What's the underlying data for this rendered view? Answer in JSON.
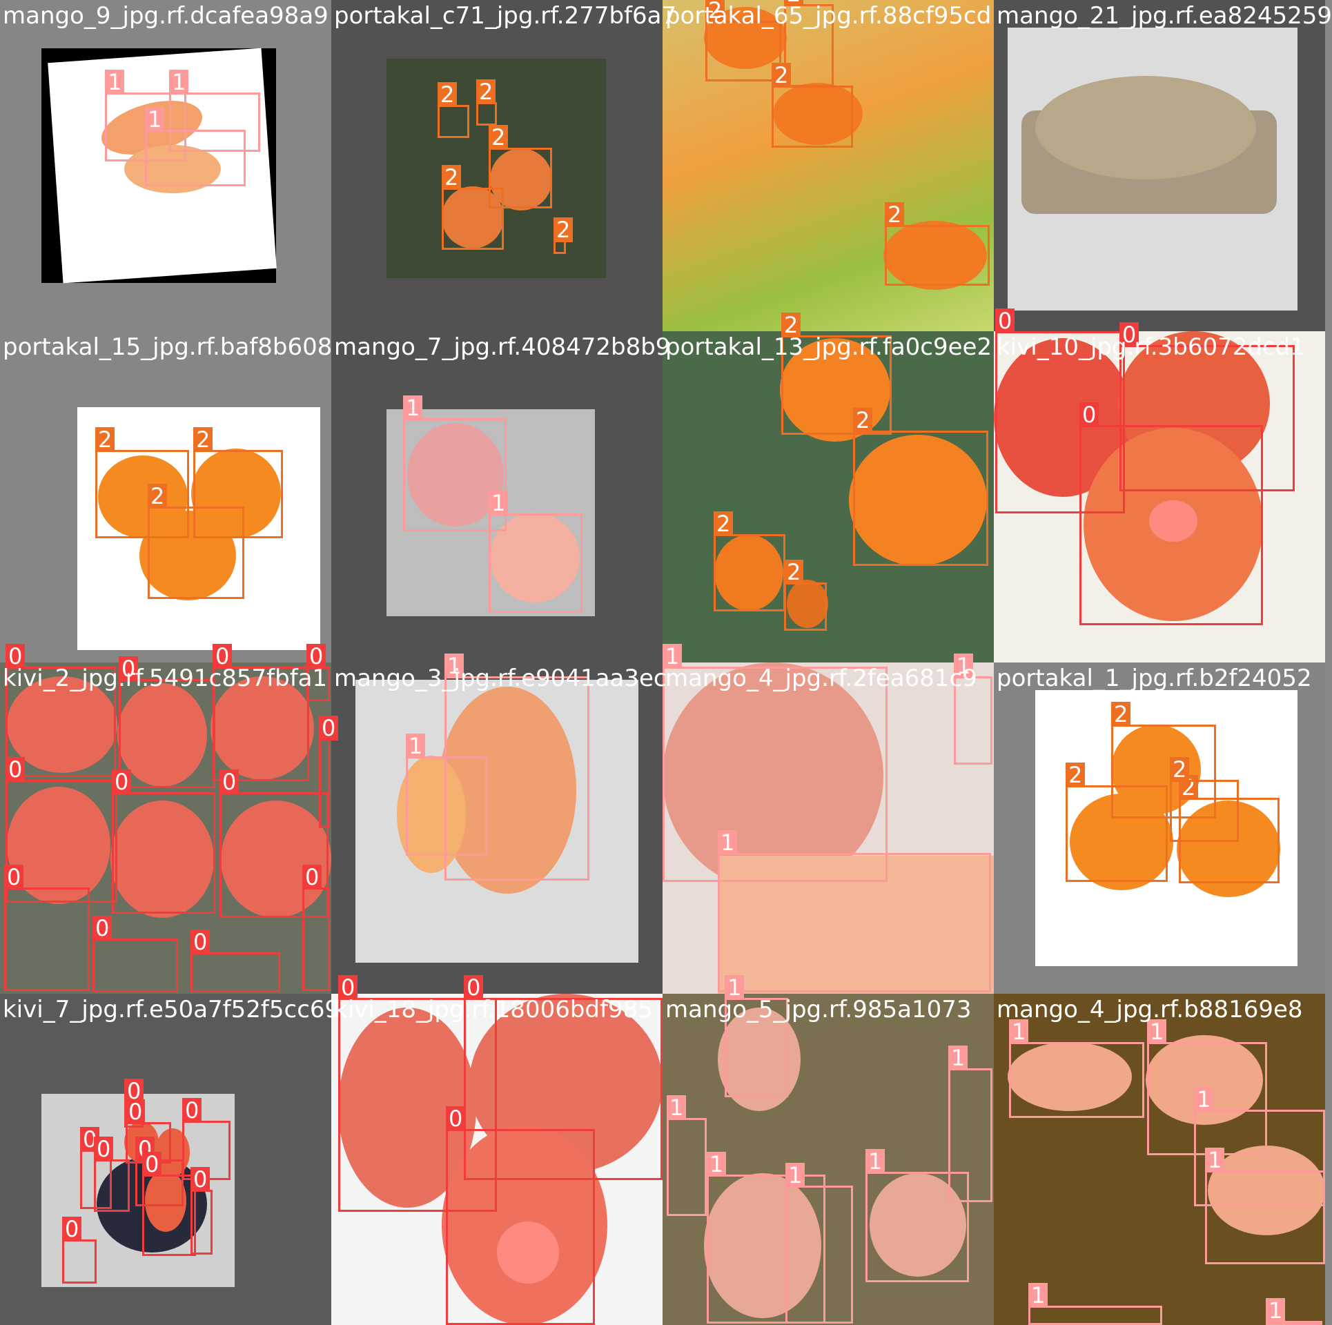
{
  "colors": {
    "class_0": "#f23c3c",
    "class_1": "#ff9a9a",
    "class_2": "#ee6e22",
    "tile_dark": "#525252",
    "tile_mid": "#848484"
  },
  "tiles": [
    {
      "filename": "mango_9_jpg.rf.dcafea98a9",
      "bg": "#868686",
      "boxes": [
        {
          "label": "1",
          "cls": 1
        },
        {
          "label": "1",
          "cls": 1
        },
        {
          "label": "1",
          "cls": 1
        }
      ]
    },
    {
      "filename": "portakal_c71_jpg.rf.277bf6a7",
      "bg": "#525252",
      "boxes": [
        {
          "label": "2",
          "cls": 2
        },
        {
          "label": "2",
          "cls": 2
        },
        {
          "label": "2",
          "cls": 2
        },
        {
          "label": "2",
          "cls": 2
        },
        {
          "label": "2",
          "cls": 2
        }
      ]
    },
    {
      "filename": "portakal_65_jpg.rf.88cf95cd",
      "bg": "#e0a040",
      "boxes": [
        {
          "label": "2",
          "cls": 2
        },
        {
          "label": "2",
          "cls": 2
        },
        {
          "label": "2",
          "cls": 2
        },
        {
          "label": "2",
          "cls": 2
        }
      ]
    },
    {
      "filename": "mango_21_jpg.rf.ea8245259",
      "bg": "#525252",
      "boxes": []
    },
    {
      "filename": "portakal_15_jpg.rf.baf8b608",
      "bg": "#868686",
      "boxes": [
        {
          "label": "2",
          "cls": 2
        },
        {
          "label": "2",
          "cls": 2
        },
        {
          "label": "2",
          "cls": 2
        }
      ]
    },
    {
      "filename": "mango_7_jpg.rf.408472b8b9",
      "bg": "#525252",
      "boxes": [
        {
          "label": "1",
          "cls": 1
        },
        {
          "label": "1",
          "cls": 1
        }
      ]
    },
    {
      "filename": "portakal_13_jpg.rf.fa0c9ee2",
      "bg": "#4a6a4a",
      "boxes": [
        {
          "label": "2",
          "cls": 2
        },
        {
          "label": "2",
          "cls": 2
        },
        {
          "label": "2",
          "cls": 2
        },
        {
          "label": "2",
          "cls": 2
        }
      ]
    },
    {
      "filename": "kivi_10_jpg.rf.3b6072dcd1",
      "bg": "#f2f0e8",
      "boxes": [
        {
          "label": "0",
          "cls": 0
        },
        {
          "label": "0",
          "cls": 0
        },
        {
          "label": "0",
          "cls": 0
        }
      ]
    },
    {
      "filename": "kivi_2_jpg.rf.5491c857fbfa1",
      "bg": "#6a7060",
      "boxes": [
        {
          "label": "0",
          "cls": 0
        },
        {
          "label": "0",
          "cls": 0
        },
        {
          "label": "0",
          "cls": 0
        },
        {
          "label": "0",
          "cls": 0
        },
        {
          "label": "0",
          "cls": 0
        },
        {
          "label": "0",
          "cls": 0
        },
        {
          "label": "0",
          "cls": 0
        },
        {
          "label": "0",
          "cls": 0
        },
        {
          "label": "0",
          "cls": 0
        },
        {
          "label": "0",
          "cls": 0
        },
        {
          "label": "0",
          "cls": 0
        },
        {
          "label": "0",
          "cls": 0
        }
      ]
    },
    {
      "filename": "mango_3_jpg.rf.e9041aa3ec",
      "bg": "#525252",
      "boxes": [
        {
          "label": "1",
          "cls": 1
        },
        {
          "label": "1",
          "cls": 1
        }
      ]
    },
    {
      "filename": "mango_4_jpg.rf.2fea681c9",
      "bg": "#e8dcd8",
      "boxes": [
        {
          "label": "1",
          "cls": 1
        },
        {
          "label": "1",
          "cls": 1
        },
        {
          "label": "1",
          "cls": 1
        }
      ]
    },
    {
      "filename": "portakal_1_jpg.rf.b2f24052",
      "bg": "#848484",
      "boxes": [
        {
          "label": "2",
          "cls": 2
        },
        {
          "label": "2",
          "cls": 2
        },
        {
          "label": "2",
          "cls": 2
        },
        {
          "label": "2",
          "cls": 2
        }
      ]
    },
    {
      "filename": "kivi_7_jpg.rf.e50a7f52f5cc69",
      "bg": "#5a5a5a",
      "boxes": [
        {
          "label": "0",
          "cls": 0
        },
        {
          "label": "0",
          "cls": 0
        },
        {
          "label": "0",
          "cls": 0
        },
        {
          "label": "0",
          "cls": 0
        },
        {
          "label": "0",
          "cls": 0
        },
        {
          "label": "0",
          "cls": 0
        },
        {
          "label": "0",
          "cls": 0
        },
        {
          "label": "0",
          "cls": 0
        },
        {
          "label": "0",
          "cls": 0
        }
      ]
    },
    {
      "filename": "kivi_18_jpg.rf.18006bdf985",
      "bg": "#f4f4f4",
      "boxes": [
        {
          "label": "0",
          "cls": 0
        },
        {
          "label": "0",
          "cls": 0
        },
        {
          "label": "0",
          "cls": 0
        }
      ]
    },
    {
      "filename": "mango_5_jpg.rf.985a1073",
      "bg": "#7a7050",
      "boxes": [
        {
          "label": "1",
          "cls": 1
        },
        {
          "label": "1",
          "cls": 1
        },
        {
          "label": "1",
          "cls": 1
        },
        {
          "label": "1",
          "cls": 1
        },
        {
          "label": "1",
          "cls": 1
        },
        {
          "label": "1",
          "cls": 1
        }
      ]
    },
    {
      "filename": "mango_4_jpg.rf.b88169e8",
      "bg": "#6a5020",
      "boxes": [
        {
          "label": "1",
          "cls": 1
        },
        {
          "label": "1",
          "cls": 1
        },
        {
          "label": "1",
          "cls": 1
        },
        {
          "label": "1",
          "cls": 1
        },
        {
          "label": "1",
          "cls": 1
        },
        {
          "label": "1",
          "cls": 1
        }
      ]
    }
  ]
}
